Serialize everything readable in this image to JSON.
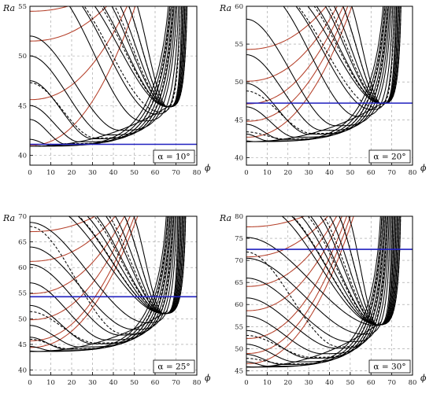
{
  "chart_data": [
    {
      "type": "line",
      "panel_label": "α = 10°",
      "xlabel": "ϕ",
      "ylabel": "Ra",
      "xlim": [
        0,
        80
      ],
      "ylim": [
        39,
        55
      ],
      "xticks": [
        0,
        10,
        20,
        30,
        40,
        50,
        60,
        70,
        80
      ],
      "yticks": [
        40,
        45,
        50,
        55
      ],
      "grid": true,
      "hline": {
        "y": 41.1,
        "color": "#1f1fbf"
      },
      "envelope_min": 40.9,
      "black_curve_starts": [
        40.2,
        41.6,
        43.6,
        45.0,
        47.5,
        50.0,
        52.0
      ],
      "red_curve_starts": [
        41.0,
        45.6,
        51.5,
        54.5
      ],
      "dashed_curve_starts": [
        40.4,
        47.3
      ],
      "envelope_phi_end": 68
    },
    {
      "type": "line",
      "panel_label": "α = 20°",
      "xlabel": "ϕ",
      "ylabel": "Ra",
      "xlim": [
        0,
        80
      ],
      "ylim": [
        39,
        60
      ],
      "xticks": [
        0,
        10,
        20,
        30,
        40,
        50,
        60,
        70,
        80
      ],
      "yticks": [
        40,
        45,
        50,
        55,
        60
      ],
      "grid": true,
      "hline": {
        "y": 47.2,
        "color": "#1f1fbf"
      },
      "envelope_min": 42.1,
      "black_curve_starts": [
        42.2,
        43.1,
        44.4,
        46.7,
        49.8,
        53.6,
        58.3
      ],
      "red_curve_starts": [
        42.7,
        44.8,
        47.1,
        50.1,
        54.3
      ],
      "dashed_curve_starts": [
        43.4,
        48.8
      ],
      "envelope_phi_end": 67
    },
    {
      "type": "line",
      "panel_label": "α = 25°",
      "xlabel": "ϕ",
      "ylabel": "Ra",
      "xlim": [
        0,
        80
      ],
      "ylim": [
        39,
        70
      ],
      "xticks": [
        0,
        10,
        20,
        30,
        40,
        50,
        60,
        70,
        80
      ],
      "yticks": [
        40,
        45,
        50,
        55,
        60,
        65,
        70
      ],
      "grid": true,
      "hline": {
        "y": 54.3,
        "color": "#1f1fbf"
      },
      "envelope_min": 43.6,
      "black_curve_starts": [
        43.7,
        44.6,
        46.4,
        48.7,
        52.6,
        57.0,
        60.6,
        64.0,
        68.8
      ],
      "red_curve_starts": [
        44.4,
        45.7,
        49.8,
        54.9,
        61.2,
        67.0
      ],
      "dashed_curve_starts": [
        46.0,
        51.4,
        68.0
      ],
      "envelope_phi_end": 66
    },
    {
      "type": "line",
      "panel_label": "α = 30°",
      "xlabel": "ϕ",
      "ylabel": "Ra",
      "xlim": [
        0,
        80
      ],
      "ylim": [
        44,
        80
      ],
      "xticks": [
        0,
        10,
        20,
        30,
        40,
        50,
        60,
        70,
        80
      ],
      "yticks": [
        45,
        50,
        55,
        60,
        65,
        70,
        75,
        80
      ],
      "grid": true,
      "hline": {
        "y": 72.5,
        "color": "#1f1fbf"
      },
      "envelope_min": 45.8,
      "black_curve_starts": [
        45.9,
        47.0,
        48.7,
        51.0,
        54.1,
        57.4,
        61.5,
        66.0,
        70.5,
        75.2
      ],
      "red_curve_starts": [
        46.6,
        48.9,
        52.3,
        58.6,
        64.1,
        70.8,
        77.6
      ],
      "dashed_curve_starts": [
        47.8,
        53.0,
        71.9
      ],
      "envelope_phi_end": 65
    }
  ]
}
